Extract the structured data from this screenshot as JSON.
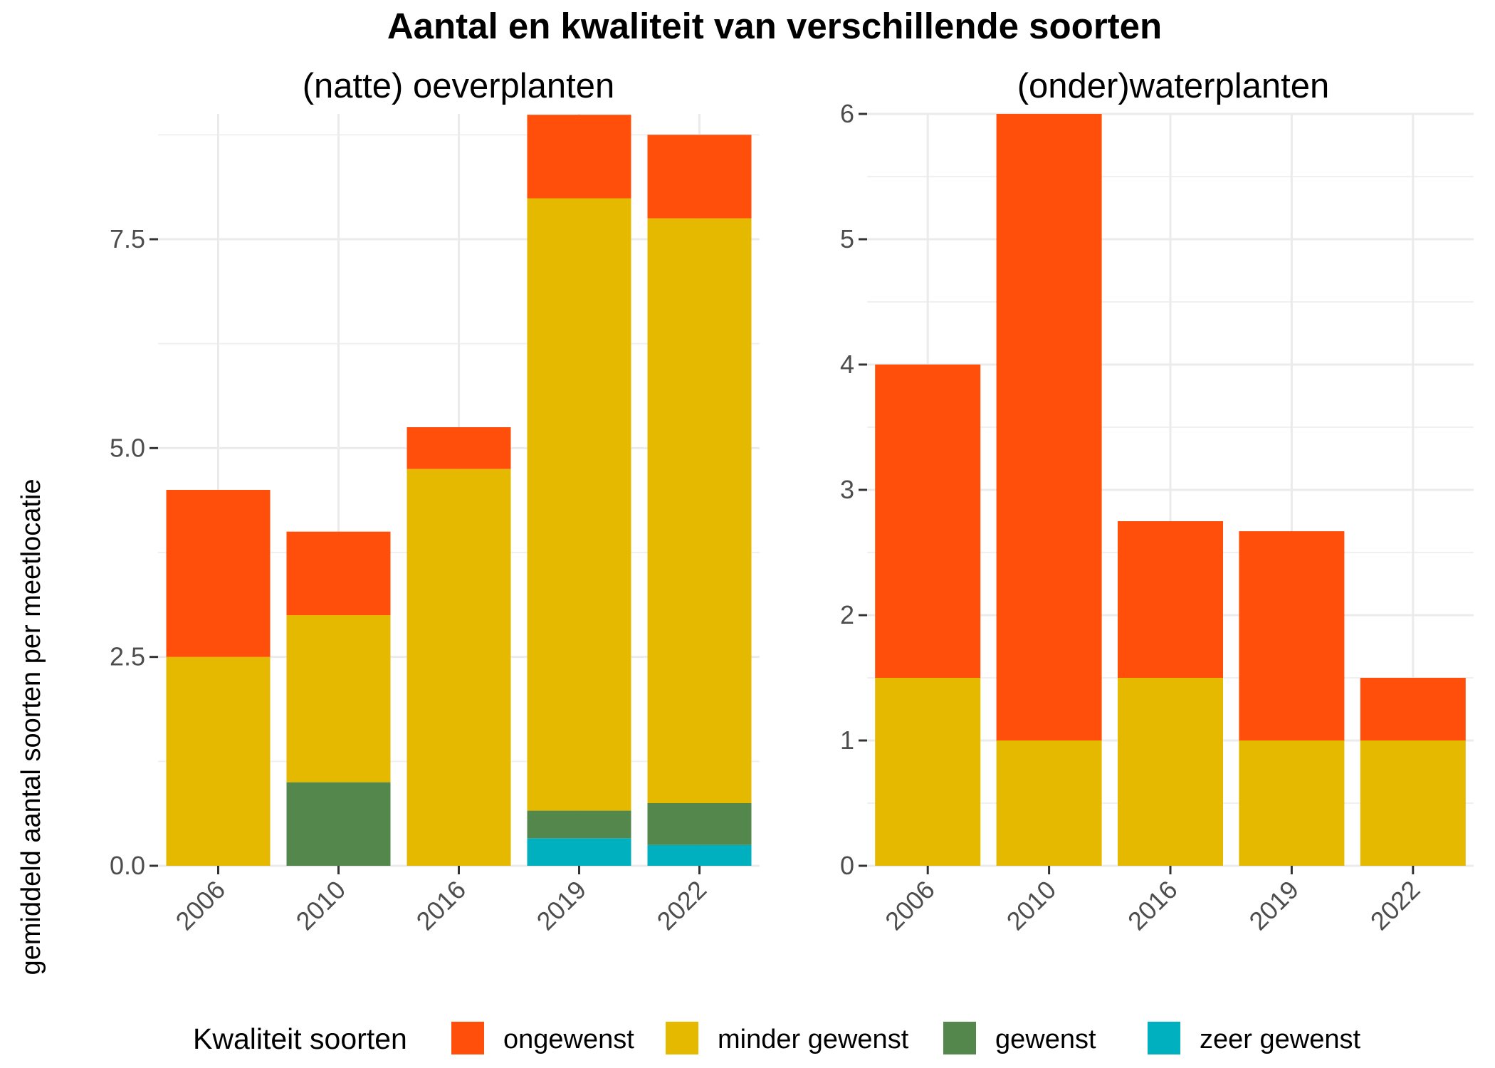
{
  "title": "Aantal en kwaliteit van verschillende soorten",
  "ylabel": "gemiddeld aantal soorten per meetlocatie",
  "legend": {
    "title": "Kwaliteit soorten",
    "placement": "bottom",
    "items": [
      {
        "label": "ongewenst",
        "color": "#FF4F0A"
      },
      {
        "label": "minder gewenst",
        "color": "#E5B900"
      },
      {
        "label": "gewenst",
        "color": "#53874C"
      },
      {
        "label": "zeer gewenst",
        "color": "#00B0BF"
      }
    ]
  },
  "chart_data": [
    {
      "type": "bar",
      "stacked": true,
      "title": "(natte) oeverplanten",
      "categories": [
        "2006",
        "2010",
        "2016",
        "2019",
        "2022"
      ],
      "ylim": [
        0,
        9
      ],
      "yticks": [
        "0.0",
        "2.5",
        "5.0",
        "7.5"
      ],
      "grid": true,
      "series": [
        {
          "name": "zeer gewenst",
          "values": [
            0,
            0,
            0,
            0.33,
            0.25
          ]
        },
        {
          "name": "gewenst",
          "values": [
            0,
            1,
            0,
            0.33,
            0.5
          ]
        },
        {
          "name": "minder gewenst",
          "values": [
            2.5,
            2,
            4.75,
            7.33,
            7
          ]
        },
        {
          "name": "ongewenst",
          "values": [
            2,
            1,
            0.5,
            1,
            1
          ]
        }
      ]
    },
    {
      "type": "bar",
      "stacked": true,
      "title": "(onder)waterplanten",
      "categories": [
        "2006",
        "2010",
        "2016",
        "2019",
        "2022"
      ],
      "ylim": [
        0,
        6
      ],
      "yticks": [
        "0",
        "1",
        "2",
        "3",
        "4",
        "5",
        "6"
      ],
      "grid": true,
      "series": [
        {
          "name": "zeer gewenst",
          "values": [
            0,
            0,
            0,
            0,
            0
          ]
        },
        {
          "name": "gewenst",
          "values": [
            0,
            0,
            0,
            0,
            0
          ]
        },
        {
          "name": "minder gewenst",
          "values": [
            1.5,
            1,
            1.5,
            1,
            1
          ]
        },
        {
          "name": "ongewenst",
          "values": [
            2.5,
            5,
            1.25,
            1.67,
            0.5
          ]
        }
      ]
    }
  ]
}
